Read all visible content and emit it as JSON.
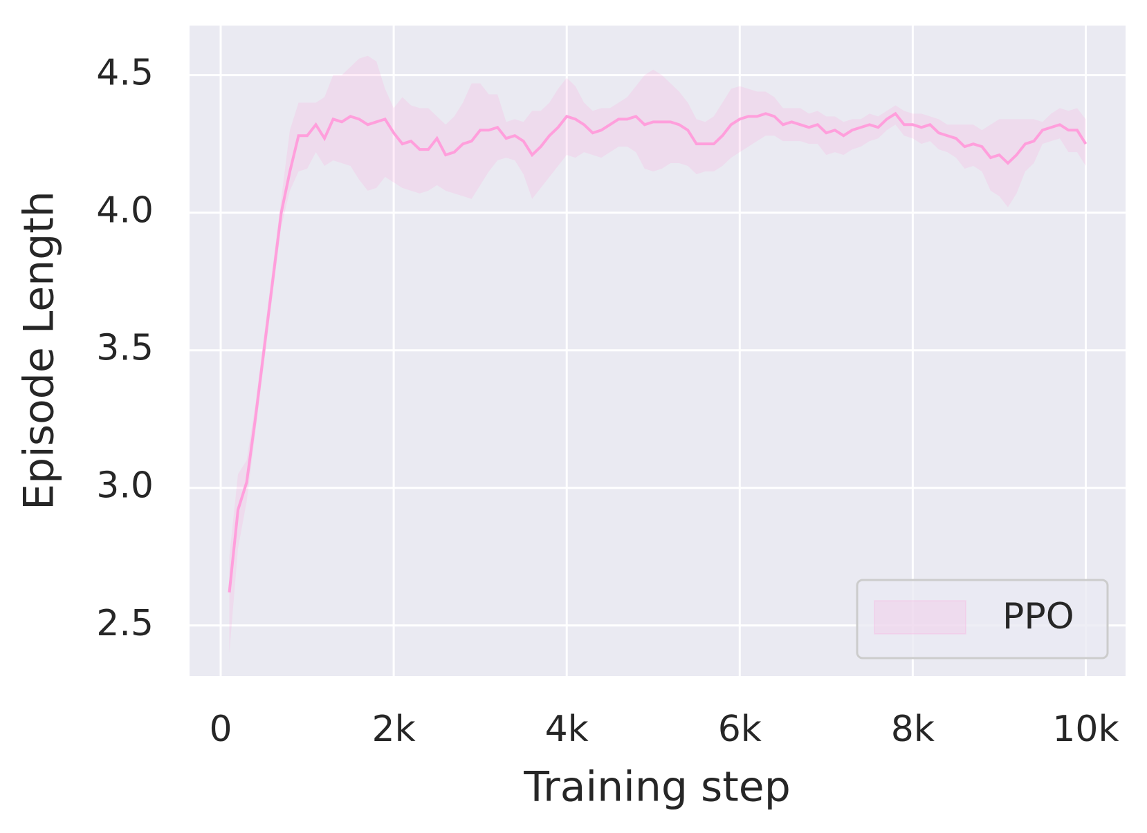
{
  "chart_data": {
    "type": "line",
    "xlabel": "Training step",
    "ylabel": "Episode Length",
    "x": [
      100,
      200,
      300,
      400,
      500,
      600,
      700,
      800,
      900,
      1000,
      1100,
      1200,
      1300,
      1400,
      1500,
      1600,
      1700,
      1800,
      1900,
      2000,
      2100,
      2200,
      2300,
      2400,
      2500,
      2600,
      2700,
      2800,
      2900,
      3000,
      3100,
      3200,
      3300,
      3400,
      3500,
      3600,
      3700,
      3800,
      3900,
      4000,
      4100,
      4200,
      4300,
      4400,
      4500,
      4600,
      4700,
      4800,
      4900,
      5000,
      5100,
      5200,
      5300,
      5400,
      5500,
      5600,
      5700,
      5800,
      5900,
      6000,
      6100,
      6200,
      6300,
      6400,
      6500,
      6600,
      6700,
      6800,
      6900,
      7000,
      7100,
      7200,
      7300,
      7400,
      7500,
      7600,
      7700,
      7800,
      7900,
      8000,
      8100,
      8200,
      8300,
      8400,
      8500,
      8600,
      8700,
      8800,
      8900,
      9000,
      9100,
      9200,
      9300,
      9400,
      9500,
      9600,
      9700,
      9800,
      9900,
      10000
    ],
    "series": [
      {
        "name": "PPO",
        "color": "#ff9fdc",
        "values": [
          2.62,
          2.92,
          3.02,
          3.25,
          3.5,
          3.75,
          4.0,
          4.15,
          4.28,
          4.28,
          4.32,
          4.27,
          4.34,
          4.33,
          4.35,
          4.34,
          4.32,
          4.33,
          4.34,
          4.29,
          4.25,
          4.26,
          4.23,
          4.23,
          4.27,
          4.21,
          4.22,
          4.25,
          4.26,
          4.3,
          4.3,
          4.31,
          4.27,
          4.28,
          4.26,
          4.21,
          4.24,
          4.28,
          4.31,
          4.35,
          4.34,
          4.32,
          4.29,
          4.3,
          4.32,
          4.34,
          4.34,
          4.35,
          4.32,
          4.33,
          4.33,
          4.33,
          4.32,
          4.3,
          4.25,
          4.25,
          4.25,
          4.28,
          4.32,
          4.34,
          4.35,
          4.35,
          4.36,
          4.35,
          4.32,
          4.33,
          4.32,
          4.31,
          4.32,
          4.29,
          4.3,
          4.28,
          4.3,
          4.31,
          4.32,
          4.31,
          4.34,
          4.36,
          4.32,
          4.32,
          4.31,
          4.32,
          4.29,
          4.28,
          4.27,
          4.24,
          4.25,
          4.24,
          4.2,
          4.21,
          4.18,
          4.21,
          4.25,
          4.26,
          4.3,
          4.31,
          4.32,
          4.3,
          4.3,
          4.25
        ],
        "upper": [
          2.75,
          3.05,
          3.1,
          3.3,
          3.55,
          3.8,
          4.05,
          4.3,
          4.4,
          4.4,
          4.4,
          4.42,
          4.5,
          4.5,
          4.53,
          4.56,
          4.57,
          4.55,
          4.45,
          4.38,
          4.42,
          4.39,
          4.38,
          4.38,
          4.35,
          4.32,
          4.35,
          4.4,
          4.47,
          4.47,
          4.43,
          4.43,
          4.33,
          4.34,
          4.33,
          4.37,
          4.37,
          4.4,
          4.45,
          4.49,
          4.46,
          4.4,
          4.37,
          4.38,
          4.38,
          4.4,
          4.42,
          4.46,
          4.5,
          4.52,
          4.5,
          4.47,
          4.44,
          4.4,
          4.34,
          4.33,
          4.35,
          4.4,
          4.45,
          4.46,
          4.45,
          4.44,
          4.44,
          4.42,
          4.38,
          4.38,
          4.38,
          4.36,
          4.37,
          4.35,
          4.35,
          4.33,
          4.34,
          4.34,
          4.36,
          4.35,
          4.37,
          4.39,
          4.37,
          4.36,
          4.36,
          4.35,
          4.34,
          4.32,
          4.32,
          4.32,
          4.32,
          4.3,
          4.32,
          4.34,
          4.34,
          4.34,
          4.34,
          4.34,
          4.33,
          4.36,
          4.38,
          4.37,
          4.38,
          4.34
        ],
        "lower": [
          2.4,
          2.78,
          2.95,
          3.2,
          3.45,
          3.7,
          3.95,
          4.08,
          4.15,
          4.16,
          4.22,
          4.17,
          4.19,
          4.18,
          4.17,
          4.12,
          4.08,
          4.09,
          4.13,
          4.11,
          4.09,
          4.08,
          4.07,
          4.08,
          4.1,
          4.08,
          4.07,
          4.06,
          4.05,
          4.1,
          4.15,
          4.19,
          4.2,
          4.19,
          4.14,
          4.05,
          4.09,
          4.13,
          4.17,
          4.21,
          4.2,
          4.22,
          4.21,
          4.2,
          4.22,
          4.24,
          4.24,
          4.22,
          4.16,
          4.15,
          4.16,
          4.18,
          4.18,
          4.17,
          4.14,
          4.15,
          4.15,
          4.17,
          4.2,
          4.22,
          4.24,
          4.26,
          4.28,
          4.28,
          4.26,
          4.26,
          4.26,
          4.25,
          4.25,
          4.21,
          4.22,
          4.21,
          4.23,
          4.24,
          4.26,
          4.27,
          4.3,
          4.32,
          4.28,
          4.27,
          4.25,
          4.26,
          4.23,
          4.22,
          4.2,
          4.16,
          4.17,
          4.15,
          4.08,
          4.06,
          4.02,
          4.07,
          4.15,
          4.18,
          4.25,
          4.26,
          4.27,
          4.22,
          4.22,
          4.17
        ]
      }
    ],
    "xlim": [
      -360,
      10460
    ],
    "ylim": [
      2.316,
      4.68
    ],
    "xticks": [
      0,
      {
        "value": 2000,
        "label": "2k"
      },
      {
        "value": 4000,
        "label": "4k"
      },
      {
        "value": 6000,
        "label": "6k"
      },
      {
        "value": 8000,
        "label": "8k"
      },
      {
        "value": 10000,
        "label": "10k"
      }
    ],
    "yticks": [
      2.5,
      {
        "value": 3,
        "label": "3.0"
      },
      3.5,
      {
        "value": 4,
        "label": "4.0"
      },
      4.5
    ],
    "grid": true,
    "legend": "lower right"
  }
}
